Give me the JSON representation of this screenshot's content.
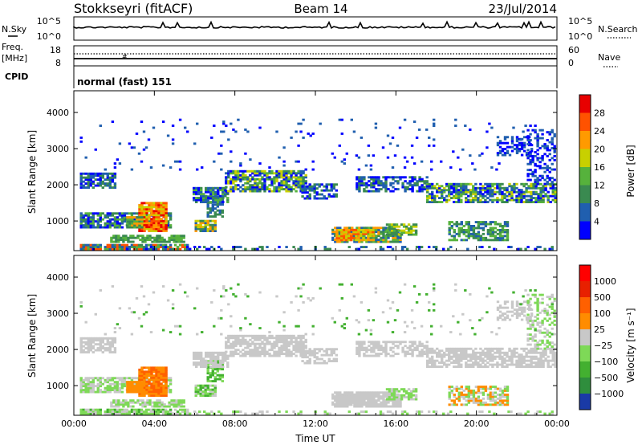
{
  "header": {
    "station": "Stokkseyri (fitACF)",
    "beam": "Beam 14",
    "date": "23/Jul/2014"
  },
  "noise_panel": {
    "left_label": "N.Sky",
    "right_label": "N.Search",
    "left_ticks": [
      "10^5",
      "10^0"
    ],
    "right_ticks": [
      "10^5",
      "10^0"
    ]
  },
  "freq_panel": {
    "left_label_1": "Freq.",
    "left_label_2": "[MHz]",
    "left_ticks": [
      "18",
      "8"
    ],
    "right_label": "Nave",
    "right_ticks": [
      "60",
      "0"
    ]
  },
  "cpid_panel": {
    "label": "CPID",
    "value": "normal (fast) 151"
  },
  "chart_data": [
    {
      "type": "heatmap",
      "title": "",
      "xlabel": "",
      "ylabel": "Slant Range [km]",
      "x_ticks": [
        "00:00",
        "04:00",
        "08:00",
        "12:00",
        "16:00",
        "20:00",
        "00:00"
      ],
      "y_ticks": [
        1000,
        2000,
        3000,
        4000
      ],
      "xlim_hours": [
        0,
        24
      ],
      "ylim_km": [
        180,
        4600
      ],
      "colorbar": {
        "label": "Power [dB]",
        "ticks": [
          "4",
          "8",
          "12",
          "16",
          "20",
          "24",
          "28"
        ],
        "colors": [
          "#0000ff",
          "#205faf",
          "#3a8a50",
          "#56b23c",
          "#c8d000",
          "#ff9a00",
          "#ff5200",
          "#e80000"
        ]
      }
    },
    {
      "type": "heatmap",
      "title": "",
      "xlabel": "Time UT",
      "ylabel": "Slant Range [km]",
      "x_ticks": [
        "00:00",
        "04:00",
        "08:00",
        "12:00",
        "16:00",
        "20:00",
        "00:00"
      ],
      "y_ticks": [
        1000,
        2000,
        3000,
        4000
      ],
      "xlim_hours": [
        0,
        24
      ],
      "ylim_km": [
        180,
        4600
      ],
      "colorbar": {
        "label": "Velocity [m s⁻¹]",
        "ticks": [
          "1000",
          "500",
          "100",
          "25",
          "−25",
          "−100",
          "−500",
          "−1000"
        ],
        "colors": [
          "#1a3aa6",
          "#2f8e3d",
          "#43b030",
          "#7ed957",
          "#c8c8c8",
          "#ff8c00",
          "#ff6000",
          "#e82000",
          "#ff0000"
        ]
      }
    }
  ]
}
